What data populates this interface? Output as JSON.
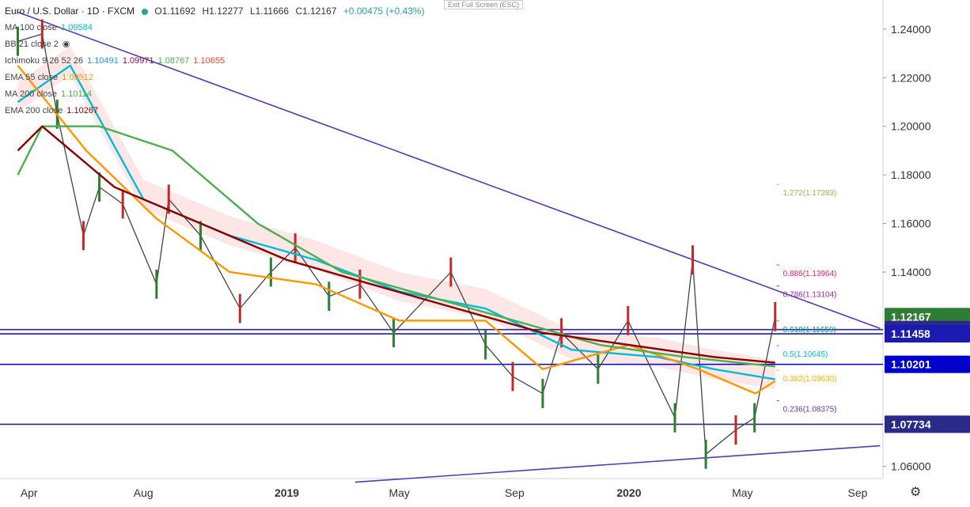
{
  "header": {
    "symbol": "Euro / U.S. Dollar · 1D · FXCM",
    "open": "O1.11692",
    "high": "H1.12277",
    "low": "L1.11666",
    "close": "C1.12167",
    "change": "+0.00475 (+0.43%)",
    "exit_fullscreen": "Exit Full Screen (ESC)"
  },
  "indicators": [
    {
      "label": "MA 100 close",
      "values": [
        "1.09584"
      ],
      "colors": [
        "#00bcd4"
      ]
    },
    {
      "label": "BB 21 close 2",
      "values": [],
      "colors": []
    },
    {
      "label": "Ichimoku 9 26 52 26",
      "values": [
        "1.10491",
        "1.09971",
        "1.08767",
        "1.10655"
      ],
      "colors": [
        "#2196f3",
        "#880e4f",
        "#4caf50",
        "#f44336"
      ]
    },
    {
      "label": "EMA 55 close",
      "values": [
        "1.09512"
      ],
      "colors": [
        "#ff9800"
      ]
    },
    {
      "label": "MA 200 close",
      "values": [
        "1.10114"
      ],
      "colors": [
        "#4caf50"
      ]
    },
    {
      "label": "EMA 200 close",
      "values": [
        "1.10267"
      ],
      "colors": [
        "#8b0000"
      ]
    }
  ],
  "chart_data": {
    "type": "line",
    "title": "Euro / U.S. Dollar · 1D · FXCM",
    "x_ticks": [
      "Apr",
      "Aug",
      "2019",
      "May",
      "Sep",
      "2020",
      "May",
      "Sep"
    ],
    "y_ticks": [
      "1.24000",
      "1.22000",
      "1.20000",
      "1.18000",
      "1.16000",
      "1.14000",
      "1.06000"
    ],
    "ylim": [
      1.055,
      1.252
    ],
    "price_series": {
      "name": "EUR/USD",
      "x": [
        "2018-03-20",
        "2018-04-15",
        "2018-05-01",
        "2018-05-29",
        "2018-06-15",
        "2018-07-10",
        "2018-08-15",
        "2018-08-28",
        "2018-10-01",
        "2018-11-12",
        "2018-12-15",
        "2019-01-10",
        "2019-02-15",
        "2019-03-20",
        "2019-04-25",
        "2019-06-25",
        "2019-08-01",
        "2019-08-30",
        "2019-10-01",
        "2019-10-21",
        "2019-11-29",
        "2019-12-31",
        "2020-02-19",
        "2020-03-09",
        "2020-03-23",
        "2020-04-24",
        "2020-05-14",
        "2020-06-05"
      ],
      "y": [
        1.235,
        1.238,
        1.205,
        1.155,
        1.175,
        1.168,
        1.135,
        1.17,
        1.155,
        1.125,
        1.14,
        1.15,
        1.13,
        1.135,
        1.115,
        1.14,
        1.11,
        1.097,
        1.09,
        1.115,
        1.1,
        1.12,
        1.08,
        1.145,
        1.065,
        1.075,
        1.08,
        1.12167
      ]
    },
    "moving_averages": [
      {
        "name": "MA 100 close",
        "color": "#00bcd4",
        "x": [
          "2018-03-20",
          "2018-05-15",
          "2018-08-01",
          "2018-11-01",
          "2019-02-01",
          "2019-05-01",
          "2019-08-01",
          "2019-11-01",
          "2020-02-01",
          "2020-04-01",
          "2020-06-05"
        ],
        "y": [
          1.21,
          1.225,
          1.17,
          1.155,
          1.145,
          1.132,
          1.125,
          1.108,
          1.105,
          1.1,
          1.09584
        ]
      },
      {
        "name": "EMA 55 close",
        "color": "#ff9800",
        "x": [
          "2018-03-20",
          "2018-06-01",
          "2018-08-15",
          "2018-11-01",
          "2019-02-01",
          "2019-05-01",
          "2019-08-01",
          "2019-10-01",
          "2020-01-01",
          "2020-03-15",
          "2020-05-15",
          "2020-06-05"
        ],
        "y": [
          1.225,
          1.19,
          1.162,
          1.14,
          1.135,
          1.12,
          1.12,
          1.1,
          1.11,
          1.1,
          1.09,
          1.09512
        ]
      },
      {
        "name": "MA 200 close",
        "color": "#4caf50",
        "x": [
          "2018-03-20",
          "2018-04-15",
          "2018-06-15",
          "2018-09-01",
          "2018-12-01",
          "2019-03-01",
          "2019-06-01",
          "2019-09-01",
          "2019-12-01",
          "2020-03-01",
          "2020-06-05"
        ],
        "y": [
          1.18,
          1.2,
          1.2,
          1.19,
          1.16,
          1.14,
          1.13,
          1.12,
          1.11,
          1.105,
          1.10114
        ]
      },
      {
        "name": "EMA 200 close",
        "color": "#8b0000",
        "x": [
          "2018-03-20",
          "2018-04-15",
          "2018-07-01",
          "2018-10-01",
          "2019-01-01",
          "2019-04-01",
          "2019-07-01",
          "2019-10-01",
          "2020-01-01",
          "2020-04-01",
          "2020-06-05"
        ],
        "y": [
          1.19,
          1.2,
          1.175,
          1.16,
          1.145,
          1.135,
          1.125,
          1.115,
          1.11,
          1.105,
          1.10267
        ]
      }
    ],
    "trendlines": [
      {
        "name": "upper-trendline",
        "color": "#5e35b1",
        "x": [
          "2018-03-20",
          "2020-09-25"
        ],
        "y": [
          1.247,
          1.1168
        ]
      },
      {
        "name": "lower-trendline",
        "color": "#5e35b1",
        "x": [
          "2019-03-15",
          "2020-09-25"
        ],
        "y": [
          1.0535,
          1.0685
        ]
      }
    ],
    "horizontal_lines": [
      {
        "price": 1.11633,
        "label": "1.11633",
        "color": "#2a2a8a"
      },
      {
        "price": 1.11458,
        "label": "1.11458",
        "color": "#1b1bb3"
      },
      {
        "price": 1.10201,
        "label": "1.10201",
        "color": "#0000cc"
      },
      {
        "price": 1.07734,
        "label": "1.07734",
        "color": "#2a2a8a"
      }
    ],
    "current_price": {
      "price": 1.12167,
      "label": "1.12167",
      "color": "#2e7d32"
    },
    "fibonacci": [
      {
        "label": "1.272(1.17283)",
        "price": 1.17283,
        "color": "#8bc34a"
      },
      {
        "label": "0.886(1.13964)",
        "price": 1.13964,
        "color": "#e91e63"
      },
      {
        "label": "0.786(1.13104)",
        "price": 1.13104,
        "color": "#9c27b0"
      },
      {
        "label": "0.618(1.11659)",
        "price": 1.11659,
        "color": "#009688"
      },
      {
        "label": "0.5(1.10645)",
        "price": 1.10645,
        "color": "#00bcd4"
      },
      {
        "label": "0.382(1.09630)",
        "price": 1.0963,
        "color": "#ffb300"
      },
      {
        "label": "0.236(1.08375)",
        "price": 1.08375,
        "color": "#5e35b1"
      }
    ]
  }
}
